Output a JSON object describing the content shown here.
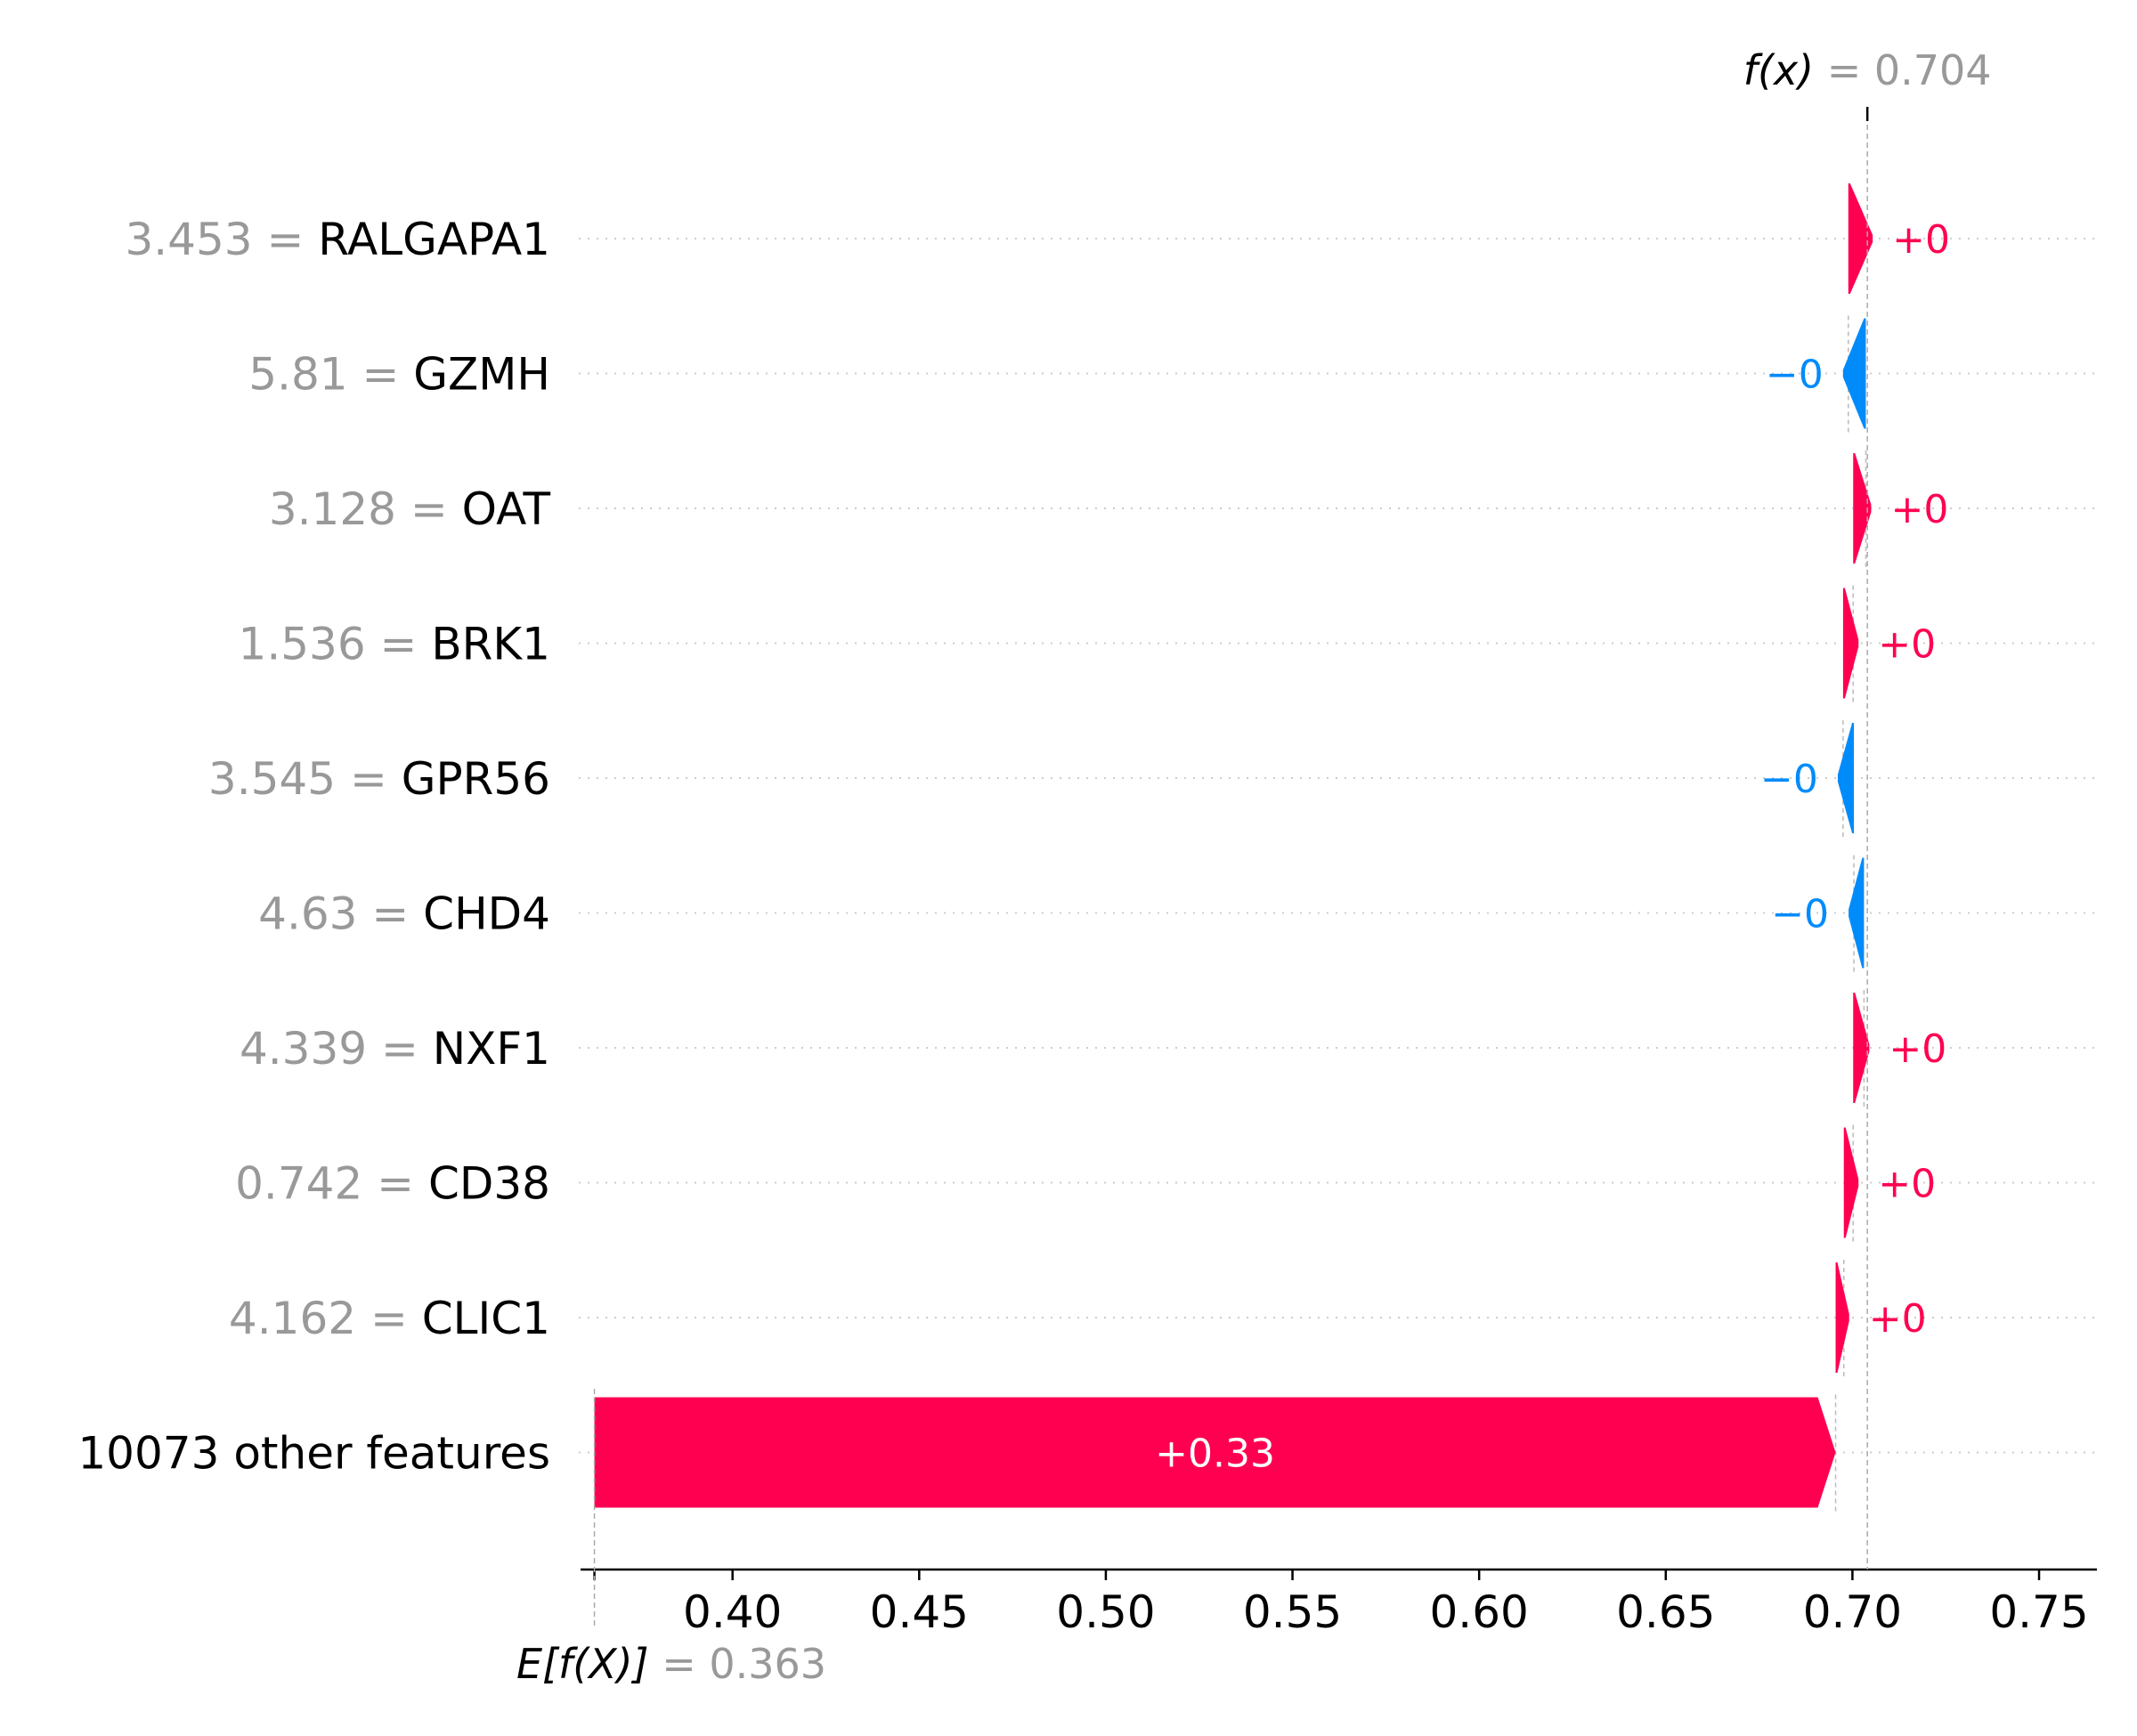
{
  "chart_data": {
    "type": "waterfall",
    "base_value": {
      "label": "E[f(X)]",
      "value_text": "= 0.363",
      "value": 0.363
    },
    "output_value": {
      "label": "f(x)",
      "value_text": "= 0.704",
      "value": 0.704
    },
    "x_ticks": [
      "0.40",
      "0.45",
      "0.50",
      "0.55",
      "0.60",
      "0.65",
      "0.70",
      "0.75"
    ],
    "x_tick_values": [
      0.4,
      0.45,
      0.5,
      0.55,
      0.6,
      0.65,
      0.7,
      0.75
    ],
    "xlim": [
      0.36,
      0.7655
    ],
    "features": [
      {
        "value_text": "3.453 =",
        "name": "RALGAPA1",
        "contribution_text": "+0",
        "start": 0.6989,
        "end": 0.704,
        "sign": "pos"
      },
      {
        "value_text": "5.81 =",
        "name": "GZMH",
        "contribution_text": "−0",
        "start": 0.7036,
        "end": 0.6989,
        "sign": "neg"
      },
      {
        "value_text": "3.128 =",
        "name": "OAT",
        "contribution_text": "+0",
        "start": 0.7002,
        "end": 0.7036,
        "sign": "pos"
      },
      {
        "value_text": "1.536 =",
        "name": "BRK1",
        "contribution_text": "+0",
        "start": 0.6975,
        "end": 0.7002,
        "sign": "pos"
      },
      {
        "value_text": "3.545 =",
        "name": "GPR56",
        "contribution_text": "−0",
        "start": 0.7004,
        "end": 0.6975,
        "sign": "neg"
      },
      {
        "value_text": "4.63 =",
        "name": "CHD4",
        "contribution_text": "−0",
        "start": 0.7031,
        "end": 0.7004,
        "sign": "neg"
      },
      {
        "value_text": "4.339 =",
        "name": "NXF1",
        "contribution_text": "+0",
        "start": 0.7002,
        "end": 0.7031,
        "sign": "pos"
      },
      {
        "value_text": "0.742 =",
        "name": "CD38",
        "contribution_text": "+0",
        "start": 0.6977,
        "end": 0.7002,
        "sign": "pos"
      },
      {
        "value_text": "4.162 =",
        "name": "CLIC1",
        "contribution_text": "+0",
        "start": 0.6955,
        "end": 0.6977,
        "sign": "pos"
      },
      {
        "value_text": "",
        "name": "10073 other features",
        "contribution_text": "+0.33",
        "start": 0.363,
        "end": 0.6955,
        "sign": "pos"
      }
    ],
    "colors": {
      "positive": "#ff0051",
      "negative": "#008bfb",
      "value_gray": "#999999",
      "axis": "#000000"
    }
  }
}
